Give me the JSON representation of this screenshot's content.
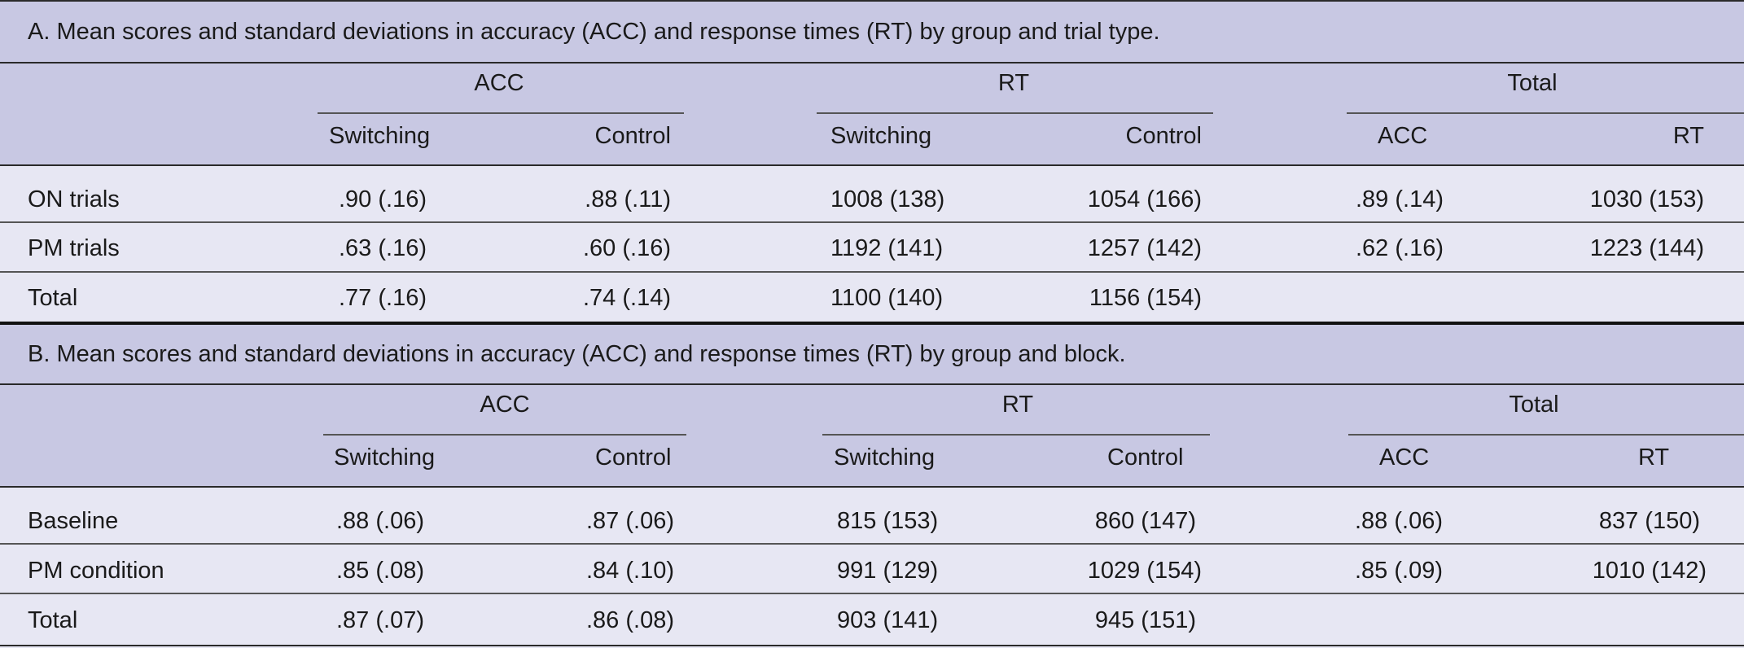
{
  "panels": [
    {
      "title": "A. Mean scores and standard deviations in accuracy (ACC) and response times (RT) by group and trial type.",
      "group_headers": [
        "ACC",
        "RT",
        "Total"
      ],
      "sub_headers": [
        "Switching",
        "Control",
        "Switching",
        "Control",
        "ACC",
        "RT"
      ],
      "rows": [
        {
          "label": "ON trials",
          "values": [
            ".90 (.16)",
            ".88 (.11)",
            "1008 (138)",
            "1054 (166)",
            ".89 (.14)",
            "1030 (153)"
          ]
        },
        {
          "label": "PM trials",
          "values": [
            ".63 (.16)",
            ".60 (.16)",
            "1192 (141)",
            "1257 (142)",
            ".62 (.16)",
            "1223 (144)"
          ]
        },
        {
          "label": "Total",
          "values": [
            ".77 (.16)",
            ".74 (.14)",
            "1100 (140)",
            "1156 (154)",
            "",
            ""
          ]
        }
      ]
    },
    {
      "title": "B. Mean scores and standard deviations in accuracy (ACC) and response times (RT) by group and block.",
      "group_headers": [
        "ACC",
        "RT",
        "Total"
      ],
      "sub_headers": [
        "Switching",
        "Control",
        "Switching",
        "Control",
        "ACC",
        "RT"
      ],
      "rows": [
        {
          "label": "Baseline",
          "values": [
            ".88 (.06)",
            ".87 (.06)",
            "815 (153)",
            "860 (147)",
            ".88 (.06)",
            "837 (150)"
          ]
        },
        {
          "label": "PM condition",
          "values": [
            ".85 (.08)",
            ".84 (.10)",
            "991 (129)",
            "1029 (154)",
            ".85 (.09)",
            "1010 (142)"
          ]
        },
        {
          "label": "Total",
          "values": [
            ".87 (.07)",
            ".86 (.08)",
            "903 (141)",
            "945 (151)",
            "",
            ""
          ]
        }
      ]
    }
  ]
}
